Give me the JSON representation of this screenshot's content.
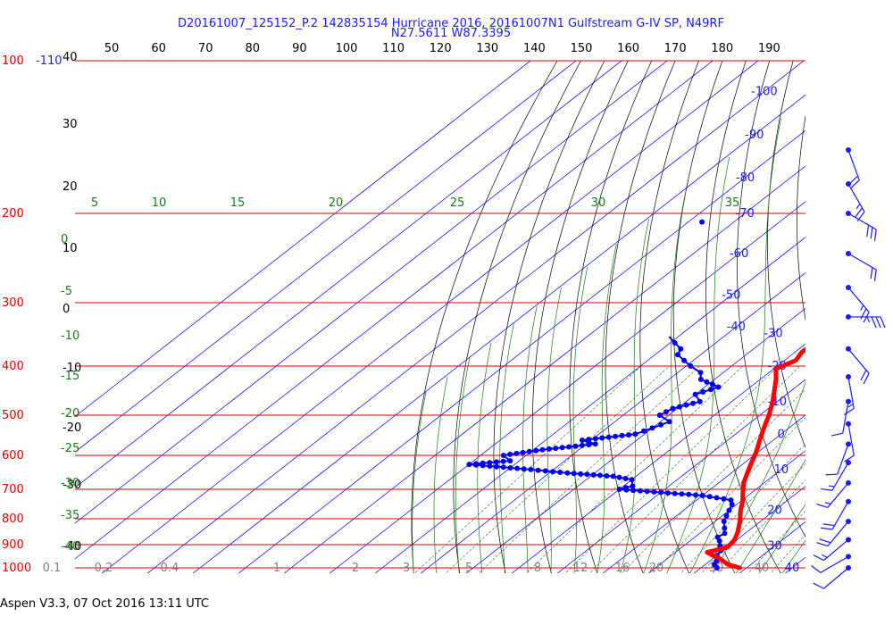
{
  "header": {
    "line1": "D20161007_125152_P.2 142835154 Hurricane 2016, 20161007N1 Gulfstream G-IV SP, N49RF",
    "line2": "N27.5611 W87.3395"
  },
  "footer": {
    "text": "Aspen V3.3, 07 Oct 2016  13:11 UTC"
  },
  "colors": {
    "isobar": "#e00000",
    "isotherm": "#1a1aff",
    "dry_adiabat": "#000000",
    "moist_adiabat": "#1a7a1a",
    "mixing_ratio": "#1a7a1a",
    "temperature_trace": "#ff0000",
    "dewpoint_trace": "#0000ee",
    "wind_barb": "#1a1aff"
  },
  "chart_data": {
    "type": "skew-t",
    "top_scale": [
      "50",
      "60",
      "70",
      "80",
      "90",
      "100",
      "110",
      "120",
      "130",
      "140",
      "150",
      "160",
      "170",
      "180",
      "190"
    ],
    "left_altitude": [
      "40",
      "30",
      "20",
      "10",
      "0",
      "-10",
      "-20",
      "-30",
      "-40"
    ],
    "isobars": [
      {
        "p": 100,
        "label": "100"
      },
      {
        "p": 200,
        "label": "200"
      },
      {
        "p": 300,
        "label": "300"
      },
      {
        "p": 400,
        "label": "400"
      },
      {
        "p": 500,
        "label": "500"
      },
      {
        "p": 600,
        "label": "600"
      },
      {
        "p": 700,
        "label": "700"
      },
      {
        "p": 800,
        "label": "800"
      },
      {
        "p": 900,
        "label": "900"
      },
      {
        "p": 1000,
        "label": "1000"
      }
    ],
    "isotherm_labels": [
      {
        "t": -110,
        "p": 100,
        "label": "-110"
      },
      {
        "t": -100,
        "p": 115,
        "label": "-100"
      },
      {
        "t": -90,
        "p": 140,
        "label": "-90"
      },
      {
        "t": -80,
        "p": 170,
        "label": "-80"
      },
      {
        "t": -70,
        "p": 200,
        "label": "-70"
      },
      {
        "t": -60,
        "p": 240,
        "label": "-60"
      },
      {
        "t": -50,
        "p": 290,
        "label": "-50"
      },
      {
        "t": -40,
        "p": 335,
        "label": "-40"
      },
      {
        "t": -30,
        "p": 345,
        "label": "-30"
      },
      {
        "t": -20,
        "p": 400,
        "label": "-20"
      },
      {
        "t": -10,
        "p": 470,
        "label": "-10"
      },
      {
        "t": 0,
        "p": 545,
        "label": "0"
      },
      {
        "t": 10,
        "p": 640,
        "label": "10"
      },
      {
        "t": 20,
        "p": 770,
        "label": "20"
      },
      {
        "t": 30,
        "p": 905,
        "label": "30"
      },
      {
        "t": 40,
        "p": 1000,
        "label": "40"
      }
    ],
    "theta_e_labels": [
      "5",
      "10",
      "15",
      "20",
      "25",
      "30",
      "35"
    ],
    "left_green_labels": [
      "0",
      "-5",
      "-10",
      "-15",
      "-20",
      "-25",
      "-30",
      "-35",
      "-40"
    ],
    "mixing_ratio_labels": [
      "0.1",
      "0.2",
      "0.4",
      "1",
      "2",
      "3",
      "5",
      "8",
      "12",
      "16",
      "20",
      "30",
      "40"
    ],
    "temperature_profile": [
      {
        "p": 1000,
        "t": 28.5
      },
      {
        "p": 985,
        "t": 25.0
      },
      {
        "p": 970,
        "t": 23.0
      },
      {
        "p": 955,
        "t": 21.0
      },
      {
        "p": 945,
        "t": 19.0
      },
      {
        "p": 932,
        "t": 17.0
      },
      {
        "p": 925,
        "t": 18.0
      },
      {
        "p": 910,
        "t": 20.0
      },
      {
        "p": 880,
        "t": 19.5
      },
      {
        "p": 850,
        "t": 18.0
      },
      {
        "p": 810,
        "t": 15.5
      },
      {
        "p": 770,
        "t": 12.5
      },
      {
        "p": 740,
        "t": 10.5
      },
      {
        "p": 710,
        "t": 8.0
      },
      {
        "p": 680,
        "t": 5.5
      },
      {
        "p": 650,
        "t": 3.5
      },
      {
        "p": 620,
        "t": 1.5
      },
      {
        "p": 590,
        "t": -0.5
      },
      {
        "p": 560,
        "t": -3.0
      },
      {
        "p": 530,
        "t": -5.5
      },
      {
        "p": 500,
        "t": -8.0
      },
      {
        "p": 470,
        "t": -11.0
      },
      {
        "p": 445,
        "t": -14.0
      },
      {
        "p": 425,
        "t": -16.5
      },
      {
        "p": 405,
        "t": -19.5
      },
      {
        "p": 390,
        "t": -17.5
      },
      {
        "p": 375,
        "t": -18.5
      },
      {
        "p": 355,
        "t": -18.0
      },
      {
        "p": 335,
        "t": -20.5
      },
      {
        "p": 315,
        "t": -24.0
      },
      {
        "p": 300,
        "t": -27.0
      },
      {
        "p": 280,
        "t": -31.5
      },
      {
        "p": 260,
        "t": -36.5
      },
      {
        "p": 240,
        "t": -41.5
      },
      {
        "p": 225,
        "t": -45.0
      },
      {
        "p": 212,
        "t": -46.5
      },
      {
        "p": 200,
        "t": -48.5
      },
      {
        "p": 188,
        "t": -51.5
      },
      {
        "p": 178,
        "t": -53.0
      }
    ],
    "temperature_isolated_point": {
      "p": 157,
      "t": -57
    },
    "dewpoint_profile": [
      {
        "p": 1000,
        "td": 23.5
      },
      {
        "p": 985,
        "td": 22.0
      },
      {
        "p": 970,
        "td": 21.5
      },
      {
        "p": 945,
        "td": 20.0
      },
      {
        "p": 925,
        "td": 19.5
      },
      {
        "p": 905,
        "td": 18.0
      },
      {
        "p": 885,
        "td": 16.5
      },
      {
        "p": 870,
        "td": 15.0
      },
      {
        "p": 855,
        "td": 15.5
      },
      {
        "p": 835,
        "td": 14.0
      },
      {
        "p": 810,
        "td": 12.0
      },
      {
        "p": 790,
        "td": 11.0
      },
      {
        "p": 770,
        "td": 10.0
      },
      {
        "p": 750,
        "td": 9.0
      },
      {
        "p": 735,
        "td": 7.5
      },
      {
        "p": 720,
        "td": 0.0
      },
      {
        "p": 710,
        "td": -10.0
      },
      {
        "p": 700,
        "td": -20.0
      },
      {
        "p": 690,
        "td": -18.0
      },
      {
        "p": 670,
        "td": -20.0
      },
      {
        "p": 660,
        "td": -25.0
      },
      {
        "p": 650,
        "td": -36.0
      },
      {
        "p": 640,
        "td": -45.0
      },
      {
        "p": 630,
        "td": -55.0
      },
      {
        "p": 625,
        "td": -60.0
      },
      {
        "p": 615,
        "td": -52.0
      },
      {
        "p": 600,
        "td": -55.0
      },
      {
        "p": 585,
        "td": -48.0
      },
      {
        "p": 570,
        "td": -38.0
      },
      {
        "p": 560,
        "td": -42.0
      },
      {
        "p": 545,
        "td": -32.0
      },
      {
        "p": 530,
        "td": -30.0
      },
      {
        "p": 515,
        "td": -28.0
      },
      {
        "p": 500,
        "td": -32.0
      },
      {
        "p": 485,
        "td": -31.0
      },
      {
        "p": 470,
        "td": -27.0
      },
      {
        "p": 455,
        "td": -30.0
      },
      {
        "p": 440,
        "td": -27.0
      },
      {
        "p": 425,
        "td": -33.0
      },
      {
        "p": 412,
        "td": -35.0
      },
      {
        "p": 400,
        "td": -39.0
      },
      {
        "p": 390,
        "td": -42.0
      },
      {
        "p": 380,
        "td": -45.0
      },
      {
        "p": 370,
        "td": -46.0
      },
      {
        "p": 360,
        "td": -49.0
      },
      {
        "p": 350,
        "td": -52.0
      }
    ],
    "dewpoint_isolated_point": {
      "p": 208,
      "td": -77
    },
    "wind_barbs": [
      {
        "p": 150,
        "dir": 340,
        "speed": 20
      },
      {
        "p": 175,
        "dir": 330,
        "speed": 25
      },
      {
        "p": 200,
        "dir": 300,
        "speed": 30
      },
      {
        "p": 240,
        "dir": 300,
        "speed": 20
      },
      {
        "p": 280,
        "dir": 320,
        "speed": 25
      },
      {
        "p": 320,
        "dir": 270,
        "speed": 35
      },
      {
        "p": 370,
        "dir": 320,
        "speed": 20
      },
      {
        "p": 420,
        "dir": 350,
        "speed": 15
      },
      {
        "p": 470,
        "dir": 10,
        "speed": 10
      },
      {
        "p": 520,
        "dir": 350,
        "speed": 10
      },
      {
        "p": 570,
        "dir": 20,
        "speed": 10
      },
      {
        "p": 620,
        "dir": 30,
        "speed": 15
      },
      {
        "p": 680,
        "dir": 40,
        "speed": 15
      },
      {
        "p": 740,
        "dir": 30,
        "speed": 20
      },
      {
        "p": 810,
        "dir": 40,
        "speed": 20
      },
      {
        "p": 880,
        "dir": 50,
        "speed": 15
      },
      {
        "p": 950,
        "dir": 60,
        "speed": 10
      },
      {
        "p": 1000,
        "dir": 50,
        "speed": 10
      }
    ]
  }
}
